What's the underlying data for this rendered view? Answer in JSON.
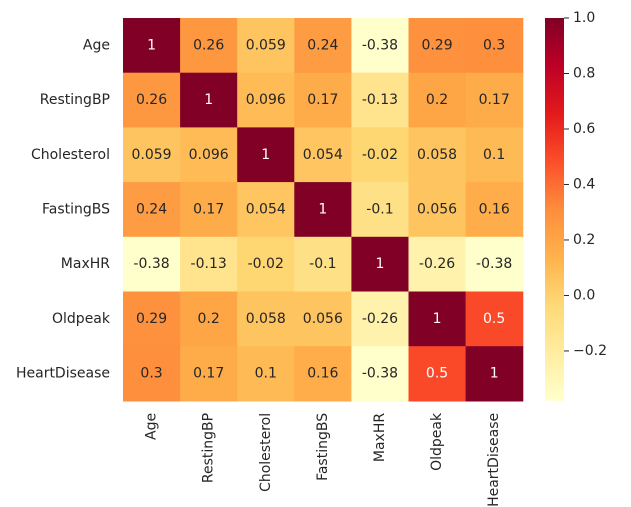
{
  "chart_data": {
    "type": "heatmap",
    "rows": [
      "Age",
      "RestingBP",
      "Cholesterol",
      "FastingBS",
      "MaxHR",
      "Oldpeak",
      "HeartDisease"
    ],
    "columns": [
      "Age",
      "RestingBP",
      "Cholesterol",
      "FastingBS",
      "MaxHR",
      "Oldpeak",
      "HeartDisease"
    ],
    "values": [
      [
        1,
        0.26,
        0.059,
        0.24,
        -0.38,
        0.29,
        0.3
      ],
      [
        0.26,
        1,
        0.096,
        0.17,
        -0.13,
        0.2,
        0.17
      ],
      [
        0.059,
        0.096,
        1,
        0.054,
        -0.02,
        0.058,
        0.1
      ],
      [
        0.24,
        0.17,
        0.054,
        1,
        -0.1,
        0.056,
        0.16
      ],
      [
        -0.38,
        -0.13,
        -0.02,
        -0.1,
        1,
        -0.26,
        -0.38
      ],
      [
        0.29,
        0.2,
        0.058,
        0.056,
        -0.26,
        1,
        0.5
      ],
      [
        0.3,
        0.17,
        0.1,
        0.16,
        -0.38,
        0.5,
        1
      ]
    ],
    "cell_labels": [
      [
        "1",
        "0.26",
        "0.059",
        "0.24",
        "-0.38",
        "0.29",
        "0.3"
      ],
      [
        "0.26",
        "1",
        "0.096",
        "0.17",
        "-0.13",
        "0.2",
        "0.17"
      ],
      [
        "0.059",
        "0.096",
        "1",
        "0.054",
        "-0.02",
        "0.058",
        "0.1"
      ],
      [
        "0.24",
        "0.17",
        "0.054",
        "1",
        "-0.1",
        "0.056",
        "0.16"
      ],
      [
        "-0.38",
        "-0.13",
        "-0.02",
        "-0.1",
        "1",
        "-0.26",
        "-0.38"
      ],
      [
        "0.29",
        "0.2",
        "0.058",
        "0.056",
        "-0.26",
        "1",
        "0.5"
      ],
      [
        "0.3",
        "0.17",
        "0.1",
        "0.16",
        "-0.38",
        "0.5",
        "1"
      ]
    ],
    "colormap": "YlOrRd",
    "colorbar": {
      "min": -0.38,
      "max": 1.0,
      "ticks": [
        1.0,
        0.8,
        0.6,
        0.4,
        0.2,
        0.0,
        -0.2
      ],
      "tick_labels": [
        "1.0",
        "0.8",
        "0.6",
        "0.4",
        "0.2",
        "0.0",
        "−0.2"
      ]
    },
    "title": "",
    "xlabel": "",
    "ylabel": "",
    "grid": false
  }
}
